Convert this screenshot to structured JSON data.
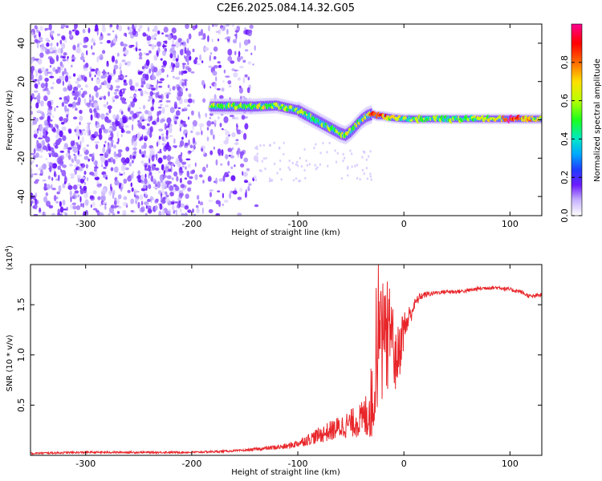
{
  "page_title": "C2E6.2025.084.14.32.G05",
  "colors": {
    "snr_line": "#e8262a",
    "purple_noise": "#7b2cf0",
    "colormap": [
      "#ffffff",
      "#d6c6ff",
      "#6c1bff",
      "#1f3cff",
      "#00bfff",
      "#00e7b0",
      "#1cff1c",
      "#c8ff00",
      "#ffd000",
      "#ff5a00",
      "#ff0000",
      "#ff0090"
    ]
  },
  "chart_data": [
    {
      "id": "spectrogram",
      "type": "heatmap",
      "title": "C2E6.2025.084.14.32.G05",
      "xlabel": "Height of straight line (km)",
      "ylabel": "Frequency (Hz)",
      "xlim": [
        -352,
        130
      ],
      "ylim": [
        -50,
        50
      ],
      "x_ticks": [
        -300,
        -200,
        -100,
        0,
        100
      ],
      "x_tick_labels": [
        "-300",
        "-200",
        "-100",
        "0",
        "100"
      ],
      "y_ticks": [
        -40,
        -20,
        0,
        20,
        40
      ],
      "y_tick_labels": [
        "-40",
        "-20",
        "0",
        "20",
        "40"
      ],
      "grid": false,
      "colorbar": {
        "label": "Normalized spectral amplitude",
        "range": [
          0,
          1
        ],
        "ticks": [
          0.0,
          0.2,
          0.4,
          0.6,
          0.8
        ],
        "tick_labels": [
          "0.0",
          "0.2",
          "0.4",
          "0.6",
          "0.8"
        ]
      },
      "ridge": {
        "name": "signal trace (frequency center vs height)",
        "x": [
          -180,
          -160,
          -140,
          -120,
          -100,
          -90,
          -80,
          -70,
          -60,
          -55,
          -50,
          -45,
          -40,
          -35,
          -30,
          -25,
          -20,
          -10,
          0,
          20,
          50,
          80,
          100,
          130
        ],
        "y": [
          7,
          7,
          7,
          7.5,
          5,
          2,
          -1,
          -4,
          -7,
          -8,
          -6,
          -3,
          0,
          2,
          3,
          2,
          2,
          1,
          0.5,
          0.5,
          0.5,
          0.5,
          0.5,
          0.5
        ],
        "amplitude": [
          0.55,
          0.6,
          0.62,
          0.6,
          0.55,
          0.55,
          0.5,
          0.52,
          0.6,
          0.62,
          0.55,
          0.58,
          0.6,
          0.7,
          0.8,
          0.9,
          0.85,
          0.65,
          0.55,
          0.55,
          0.55,
          0.6,
          0.9,
          0.6
        ]
      }
    },
    {
      "id": "snr",
      "type": "line",
      "title": "",
      "xlabel": "Height of straight line (km)",
      "ylabel": "SNR (10 * v/v)",
      "y_multiplier": "(x10",
      "y_multiplier_exp": "4",
      "y_multiplier_close": ")",
      "xlim": [
        -352,
        130
      ],
      "ylim": [
        0,
        1.9
      ],
      "x_ticks": [
        -300,
        -200,
        -100,
        0,
        100
      ],
      "x_tick_labels": [
        "-300",
        "-200",
        "-100",
        "0",
        "100"
      ],
      "y_ticks": [
        0.5,
        1.0,
        1.5
      ],
      "y_tick_labels": [
        "0.5",
        "1.0",
        "1.5"
      ],
      "grid": false,
      "series": [
        {
          "color": "#e8262a",
          "x": [
            -352,
            -300,
            -250,
            -200,
            -170,
            -150,
            -130,
            -110,
            -100,
            -90,
            -80,
            -70,
            -60,
            -50,
            -40,
            -35,
            -30,
            -27,
            -25,
            -22,
            -20,
            -18,
            -16,
            -14,
            -12,
            -10,
            -8,
            -6,
            -4,
            -2,
            0,
            5,
            10,
            15,
            20,
            30,
            40,
            50,
            60,
            70,
            80,
            90,
            100,
            110,
            115,
            120,
            125,
            130
          ],
          "y": [
            0.02,
            0.03,
            0.03,
            0.03,
            0.04,
            0.05,
            0.07,
            0.09,
            0.12,
            0.16,
            0.2,
            0.24,
            0.28,
            0.32,
            0.35,
            0.4,
            0.55,
            0.8,
            1.0,
            1.2,
            0.9,
            0.8,
            0.95,
            1.2,
            1.35,
            1.1,
            0.9,
            1.0,
            1.05,
            1.2,
            1.25,
            1.38,
            1.5,
            1.58,
            1.6,
            1.62,
            1.63,
            1.63,
            1.64,
            1.66,
            1.67,
            1.67,
            1.65,
            1.63,
            1.6,
            1.58,
            1.59,
            1.6
          ],
          "noise_amplitude": [
            0.01,
            0.01,
            0.01,
            0.01,
            0.01,
            0.01,
            0.02,
            0.03,
            0.04,
            0.06,
            0.08,
            0.1,
            0.12,
            0.14,
            0.18,
            0.25,
            0.4,
            0.5,
            0.55,
            0.6,
            0.55,
            0.5,
            0.5,
            0.45,
            0.4,
            0.35,
            0.3,
            0.3,
            0.28,
            0.25,
            0.2,
            0.12,
            0.06,
            0.04,
            0.03,
            0.02,
            0.02,
            0.02,
            0.02,
            0.02,
            0.02,
            0.02,
            0.02,
            0.02,
            0.02,
            0.02,
            0.02,
            0.02
          ]
        }
      ]
    }
  ]
}
